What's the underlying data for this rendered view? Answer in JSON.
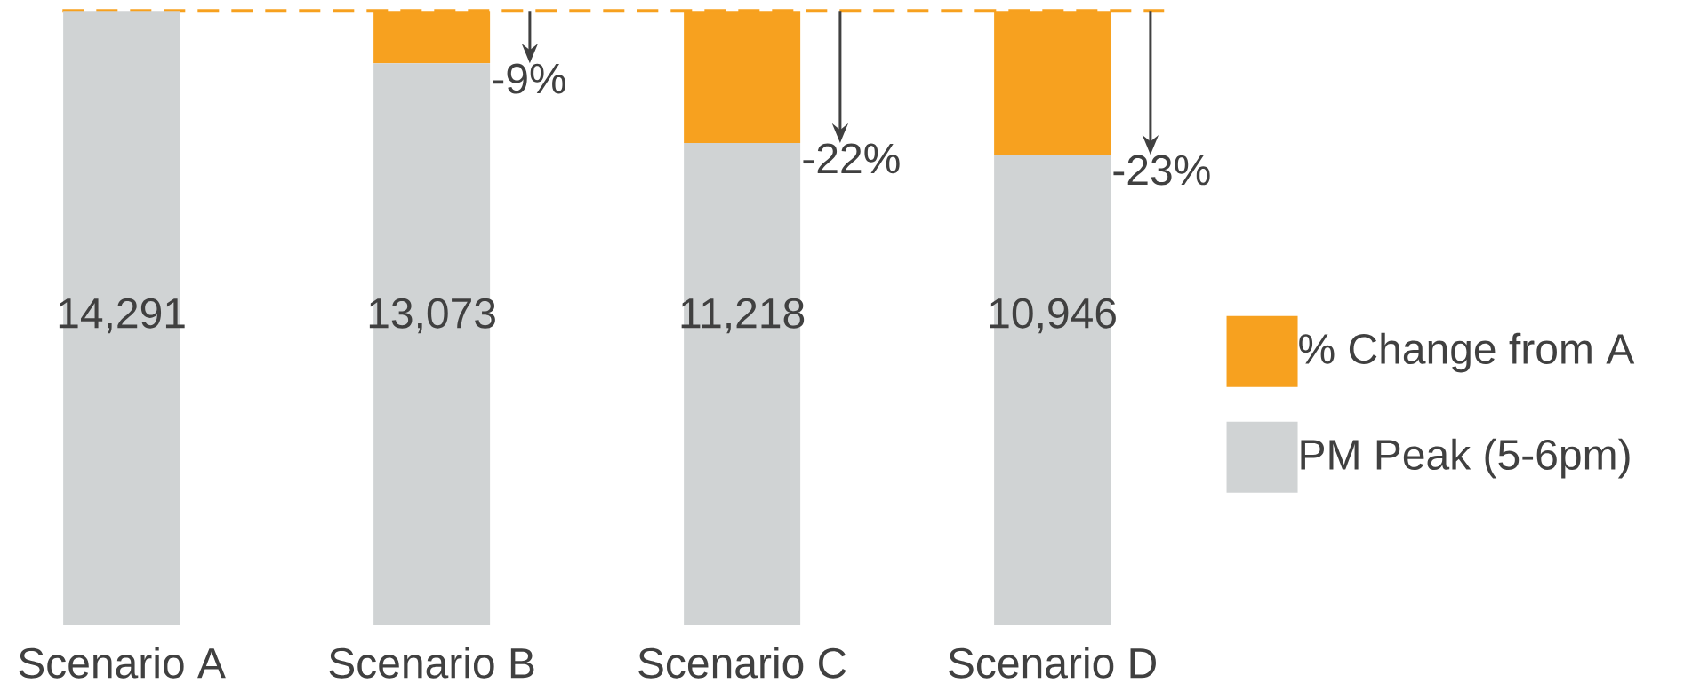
{
  "chart_data": {
    "type": "bar",
    "stacked": true,
    "categories": [
      "Scenario A",
      "Scenario B",
      "Scenario C",
      "Scenario D"
    ],
    "series": [
      {
        "name": "PM Peak (5-6pm)",
        "color": "#d0d3d4",
        "values": [
          14291,
          13073,
          11218,
          10946
        ],
        "value_labels": [
          "14,291",
          "13,073",
          "11,218",
          "10,946"
        ]
      },
      {
        "name": "% Change from A",
        "color": "#f7a11f",
        "values": [
          0,
          1218,
          3073,
          3345
        ]
      }
    ],
    "ref_lines": [
      {
        "axis": "y",
        "value": 14291,
        "color": "#f7a11f",
        "line_style": "dashed"
      }
    ],
    "annotations": [
      {
        "text": "-9%",
        "x": "Scenario B",
        "y": 13073
      },
      {
        "text": "-22%",
        "x": "Scenario C",
        "y": 11218
      },
      {
        "text": "-23%",
        "x": "Scenario D",
        "y": 10946
      }
    ],
    "legend": "right"
  }
}
